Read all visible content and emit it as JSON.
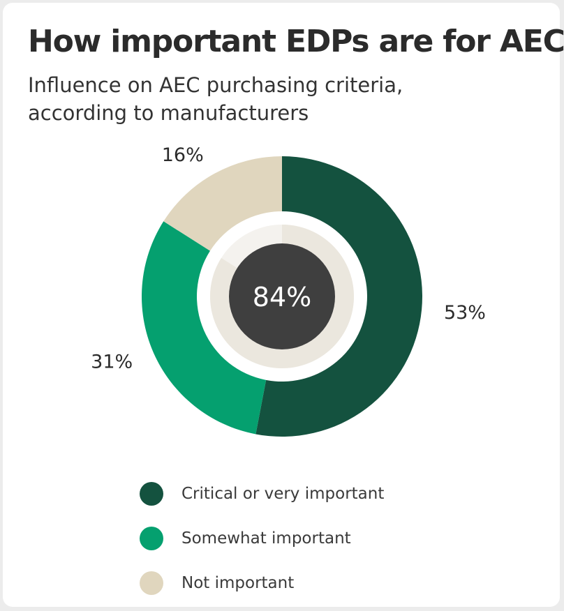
{
  "header": {
    "title": "How important EDPs are for AEC",
    "subtitle": "Influence on AEC purchasing criteria, according to manufacturers"
  },
  "colors": {
    "critical": "#14523f",
    "somewhat": "#05a06f",
    "not_important": "#e0d6be",
    "inner_track": "#f4f2ee",
    "inner_fill": "#ebe7de",
    "center": "#3f3f3f",
    "text": "#2b2b2b"
  },
  "chart_data": {
    "type": "pie",
    "style": "donut",
    "title": "How important EDPs are for AEC",
    "subtitle": "Influence on AEC purchasing criteria, according to manufacturers",
    "categories": [
      "Critical or very important",
      "Somewhat important",
      "Not important"
    ],
    "values": [
      53,
      31,
      16
    ],
    "labels": [
      "53%",
      "31%",
      "16%"
    ],
    "center_value": 84,
    "center_label": "84%",
    "legend_position": "bottom"
  }
}
